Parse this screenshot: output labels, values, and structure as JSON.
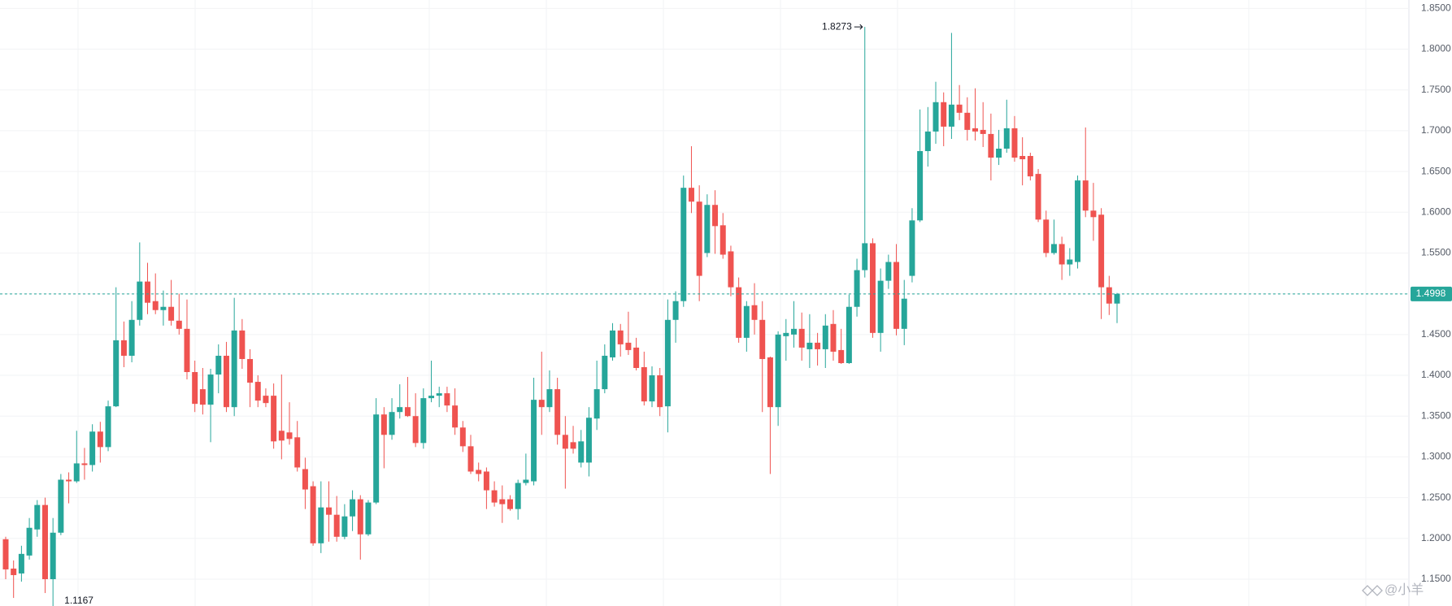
{
  "chart_data": {
    "type": "candlestick",
    "up_color": "#26a69a",
    "down_color": "#ef5350",
    "ylim": [
      1.1171,
      1.8603
    ],
    "yticks": [
      {
        "value": 1.15,
        "label": "1.1500"
      },
      {
        "value": 1.2,
        "label": "1.2000"
      },
      {
        "value": 1.25,
        "label": "1.2500"
      },
      {
        "value": 1.3,
        "label": "1.3000"
      },
      {
        "value": 1.35,
        "label": "1.3500"
      },
      {
        "value": 1.4,
        "label": "1.4000"
      },
      {
        "value": 1.45,
        "label": "1.4500"
      },
      {
        "value": 1.5,
        "label": "1.5000"
      },
      {
        "value": 1.55,
        "label": "1.5500"
      },
      {
        "value": 1.6,
        "label": "1.6000"
      },
      {
        "value": 1.65,
        "label": "1.6500"
      },
      {
        "value": 1.7,
        "label": "1.7000"
      },
      {
        "value": 1.75,
        "label": "1.7500"
      },
      {
        "value": 1.8,
        "label": "1.8000"
      },
      {
        "value": 1.85,
        "label": "1.8500"
      }
    ],
    "grid": true,
    "current_price": 1.4998,
    "annotations": {
      "high": 1.8273,
      "low": 1.1167
    },
    "watermark": "@小羊",
    "ohlc": [
      [
        1.199,
        1.202,
        1.15,
        1.162
      ],
      [
        1.163,
        1.173,
        1.127,
        1.155
      ],
      [
        1.157,
        1.191,
        1.147,
        1.181
      ],
      [
        1.179,
        1.225,
        1.174,
        1.213
      ],
      [
        1.211,
        1.247,
        1.202,
        1.241
      ],
      [
        1.241,
        1.25,
        1.133,
        1.15
      ],
      [
        1.15,
        1.225,
        1.1167,
        1.207
      ],
      [
        1.207,
        1.279,
        1.204,
        1.272
      ],
      [
        1.272,
        1.281,
        1.243,
        1.27
      ],
      [
        1.27,
        1.332,
        1.268,
        1.292
      ],
      [
        1.292,
        1.311,
        1.272,
        1.29
      ],
      [
        1.29,
        1.34,
        1.282,
        1.331
      ],
      [
        1.331,
        1.343,
        1.293,
        1.312
      ],
      [
        1.312,
        1.369,
        1.307,
        1.362
      ],
      [
        1.362,
        1.508,
        1.361,
        1.443
      ],
      [
        1.443,
        1.466,
        1.41,
        1.424
      ],
      [
        1.424,
        1.491,
        1.416,
        1.468
      ],
      [
        1.468,
        1.563,
        1.461,
        1.515
      ],
      [
        1.515,
        1.538,
        1.475,
        1.489
      ],
      [
        1.491,
        1.525,
        1.475,
        1.48
      ],
      [
        1.48,
        1.504,
        1.461,
        1.484
      ],
      [
        1.484,
        1.517,
        1.461,
        1.467
      ],
      [
        1.467,
        1.5,
        1.45,
        1.457
      ],
      [
        1.457,
        1.493,
        1.395,
        1.404
      ],
      [
        1.404,
        1.418,
        1.355,
        1.365
      ],
      [
        1.383,
        1.409,
        1.352,
        1.364
      ],
      [
        1.364,
        1.408,
        1.318,
        1.401
      ],
      [
        1.401,
        1.438,
        1.378,
        1.424
      ],
      [
        1.424,
        1.441,
        1.355,
        1.361
      ],
      [
        1.361,
        1.495,
        1.35,
        1.455
      ],
      [
        1.455,
        1.469,
        1.408,
        1.42
      ],
      [
        1.42,
        1.432,
        1.361,
        1.391
      ],
      [
        1.392,
        1.4,
        1.361,
        1.369
      ],
      [
        1.375,
        1.384,
        1.361,
        1.366
      ],
      [
        1.375,
        1.39,
        1.31,
        1.319
      ],
      [
        1.332,
        1.401,
        1.297,
        1.32
      ],
      [
        1.33,
        1.367,
        1.315,
        1.322
      ],
      [
        1.324,
        1.344,
        1.282,
        1.287
      ],
      [
        1.285,
        1.299,
        1.236,
        1.26
      ],
      [
        1.264,
        1.27,
        1.191,
        1.194
      ],
      [
        1.194,
        1.27,
        1.182,
        1.238
      ],
      [
        1.238,
        1.27,
        1.196,
        1.229
      ],
      [
        1.229,
        1.252,
        1.196,
        1.202
      ],
      [
        1.202,
        1.242,
        1.199,
        1.227
      ],
      [
        1.227,
        1.259,
        1.209,
        1.248
      ],
      [
        1.248,
        1.253,
        1.174,
        1.205
      ],
      [
        1.205,
        1.247,
        1.203,
        1.244
      ],
      [
        1.244,
        1.372,
        1.242,
        1.352
      ],
      [
        1.352,
        1.361,
        1.286,
        1.327
      ],
      [
        1.327,
        1.372,
        1.321,
        1.355
      ],
      [
        1.355,
        1.389,
        1.347,
        1.361
      ],
      [
        1.361,
        1.398,
        1.349,
        1.35
      ],
      [
        1.35,
        1.378,
        1.312,
        1.317
      ],
      [
        1.317,
        1.384,
        1.31,
        1.372
      ],
      [
        1.372,
        1.418,
        1.367,
        1.375
      ],
      [
        1.375,
        1.386,
        1.361,
        1.378
      ],
      [
        1.378,
        1.386,
        1.355,
        1.363
      ],
      [
        1.363,
        1.384,
        1.327,
        1.336
      ],
      [
        1.336,
        1.344,
        1.306,
        1.313
      ],
      [
        1.313,
        1.327,
        1.279,
        1.282
      ],
      [
        1.284,
        1.293,
        1.27,
        1.279
      ],
      [
        1.282,
        1.287,
        1.236,
        1.259
      ],
      [
        1.259,
        1.27,
        1.239,
        1.244
      ],
      [
        1.248,
        1.265,
        1.219,
        1.242
      ],
      [
        1.248,
        1.253,
        1.234,
        1.236
      ],
      [
        1.236,
        1.272,
        1.223,
        1.268
      ],
      [
        1.268,
        1.304,
        1.265,
        1.272
      ],
      [
        1.27,
        1.397,
        1.265,
        1.37
      ],
      [
        1.37,
        1.429,
        1.327,
        1.361
      ],
      [
        1.361,
        1.406,
        1.355,
        1.383
      ],
      [
        1.383,
        1.397,
        1.315,
        1.327
      ],
      [
        1.327,
        1.35,
        1.261,
        1.31
      ],
      [
        1.318,
        1.338,
        1.304,
        1.31
      ],
      [
        1.293,
        1.333,
        1.287,
        1.319
      ],
      [
        1.293,
        1.361,
        1.276,
        1.348
      ],
      [
        1.347,
        1.418,
        1.333,
        1.383
      ],
      [
        1.383,
        1.438,
        1.378,
        1.424
      ],
      [
        1.422,
        1.464,
        1.418,
        1.455
      ],
      [
        1.455,
        1.463,
        1.423,
        1.438
      ],
      [
        1.44,
        1.478,
        1.425,
        1.431
      ],
      [
        1.434,
        1.446,
        1.406,
        1.409
      ],
      [
        1.41,
        1.429,
        1.363,
        1.368
      ],
      [
        1.368,
        1.411,
        1.361,
        1.4
      ],
      [
        1.4,
        1.409,
        1.35,
        1.361
      ],
      [
        1.362,
        1.493,
        1.33,
        1.468
      ],
      [
        1.468,
        1.503,
        1.44,
        1.491
      ],
      [
        1.491,
        1.645,
        1.484,
        1.63
      ],
      [
        1.63,
        1.681,
        1.599,
        1.613
      ],
      [
        1.613,
        1.633,
        1.491,
        1.522
      ],
      [
        1.55,
        1.622,
        1.545,
        1.609
      ],
      [
        1.609,
        1.627,
        1.549,
        1.583
      ],
      [
        1.584,
        1.599,
        1.543,
        1.548
      ],
      [
        1.552,
        1.559,
        1.497,
        1.508
      ],
      [
        1.508,
        1.52,
        1.44,
        1.446
      ],
      [
        1.446,
        1.491,
        1.429,
        1.485
      ],
      [
        1.486,
        1.513,
        1.45,
        1.468
      ],
      [
        1.468,
        1.491,
        1.355,
        1.42
      ],
      [
        1.422,
        1.423,
        1.279,
        1.361
      ],
      [
        1.361,
        1.454,
        1.338,
        1.45
      ],
      [
        1.448,
        1.469,
        1.418,
        1.452
      ],
      [
        1.45,
        1.491,
        1.434,
        1.457
      ],
      [
        1.457,
        1.477,
        1.418,
        1.434
      ],
      [
        1.432,
        1.475,
        1.409,
        1.44
      ],
      [
        1.44,
        1.452,
        1.412,
        1.432
      ],
      [
        1.432,
        1.475,
        1.409,
        1.461
      ],
      [
        1.463,
        1.48,
        1.418,
        1.429
      ],
      [
        1.431,
        1.457,
        1.414,
        1.415
      ],
      [
        1.415,
        1.499,
        1.414,
        1.484
      ],
      [
        1.484,
        1.543,
        1.472,
        1.529
      ],
      [
        1.529,
        1.8273,
        1.52,
        1.562
      ],
      [
        1.562,
        1.568,
        1.446,
        1.452
      ],
      [
        1.452,
        1.531,
        1.429,
        1.516
      ],
      [
        1.516,
        1.548,
        1.506,
        1.539
      ],
      [
        1.539,
        1.561,
        1.449,
        1.457
      ],
      [
        1.457,
        1.517,
        1.437,
        1.494
      ],
      [
        1.522,
        1.605,
        1.514,
        1.59
      ],
      [
        1.59,
        1.726,
        1.588,
        1.675
      ],
      [
        1.675,
        1.729,
        1.656,
        1.699
      ],
      [
        1.699,
        1.76,
        1.684,
        1.735
      ],
      [
        1.735,
        1.747,
        1.681,
        1.705
      ],
      [
        1.705,
        1.82,
        1.69,
        1.732
      ],
      [
        1.732,
        1.756,
        1.713,
        1.722
      ],
      [
        1.722,
        1.741,
        1.688,
        1.701
      ],
      [
        1.703,
        1.752,
        1.688,
        1.699
      ],
      [
        1.701,
        1.735,
        1.68,
        1.696
      ],
      [
        1.696,
        1.721,
        1.639,
        1.667
      ],
      [
        1.667,
        1.701,
        1.658,
        1.678
      ],
      [
        1.678,
        1.738,
        1.673,
        1.703
      ],
      [
        1.703,
        1.718,
        1.662,
        1.667
      ],
      [
        1.669,
        1.692,
        1.633,
        1.665
      ],
      [
        1.669,
        1.673,
        1.639,
        1.644
      ],
      [
        1.647,
        1.653,
        1.588,
        1.591
      ],
      [
        1.591,
        1.602,
        1.545,
        1.55
      ],
      [
        1.55,
        1.591,
        1.548,
        1.561
      ],
      [
        1.561,
        1.57,
        1.517,
        1.536
      ],
      [
        1.536,
        1.556,
        1.522,
        1.542
      ],
      [
        1.539,
        1.645,
        1.531,
        1.639
      ],
      [
        1.639,
        1.704,
        1.594,
        1.602
      ],
      [
        1.602,
        1.636,
        1.565,
        1.594
      ],
      [
        1.597,
        1.605,
        1.469,
        1.508
      ],
      [
        1.508,
        1.522,
        1.474,
        1.488
      ],
      [
        1.488,
        1.501,
        1.464,
        1.4998
      ]
    ]
  }
}
